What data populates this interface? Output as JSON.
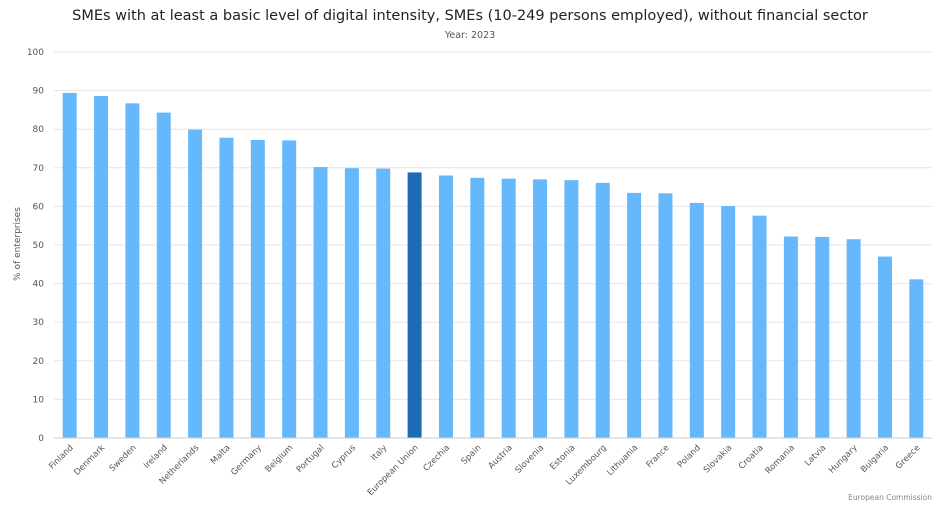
{
  "chart_data": {
    "type": "bar",
    "title": "SMEs with at least a basic level of digital intensity, SMEs (10-249 persons employed), without financial sector",
    "subtitle": "Year: 2023",
    "xlabel": "",
    "ylabel": "% of enterprises",
    "ylim": [
      0,
      100
    ],
    "yticks": [
      0,
      10,
      20,
      30,
      40,
      50,
      60,
      70,
      80,
      90,
      100
    ],
    "grid": true,
    "legend": "none",
    "colors": {
      "default": "#66b8fc",
      "highlight": "#1d6bb5"
    },
    "highlight_category": "European Union",
    "categories": [
      "Finland",
      "Denmark",
      "Sweden",
      "Ireland",
      "Netherlands",
      "Malta",
      "Germany",
      "Belgium",
      "Portugal",
      "Cyprus",
      "Italy",
      "European Union",
      "Czechia",
      "Spain",
      "Austria",
      "Slovenia",
      "Estonia",
      "Luxembourg",
      "Lithuania",
      "France",
      "Poland",
      "Slovakia",
      "Croatia",
      "Romania",
      "Latvia",
      "Hungary",
      "Bulgaria",
      "Greece"
    ],
    "values": [
      89.4,
      88.6,
      86.7,
      84.3,
      79.9,
      77.8,
      77.2,
      77.1,
      70.2,
      69.9,
      69.8,
      68.8,
      68.0,
      67.4,
      67.2,
      67.0,
      66.8,
      66.1,
      63.5,
      63.4,
      60.9,
      60.1,
      57.6,
      52.2,
      52.1,
      51.5,
      47.0,
      41.1
    ],
    "credit": "European Commission"
  }
}
